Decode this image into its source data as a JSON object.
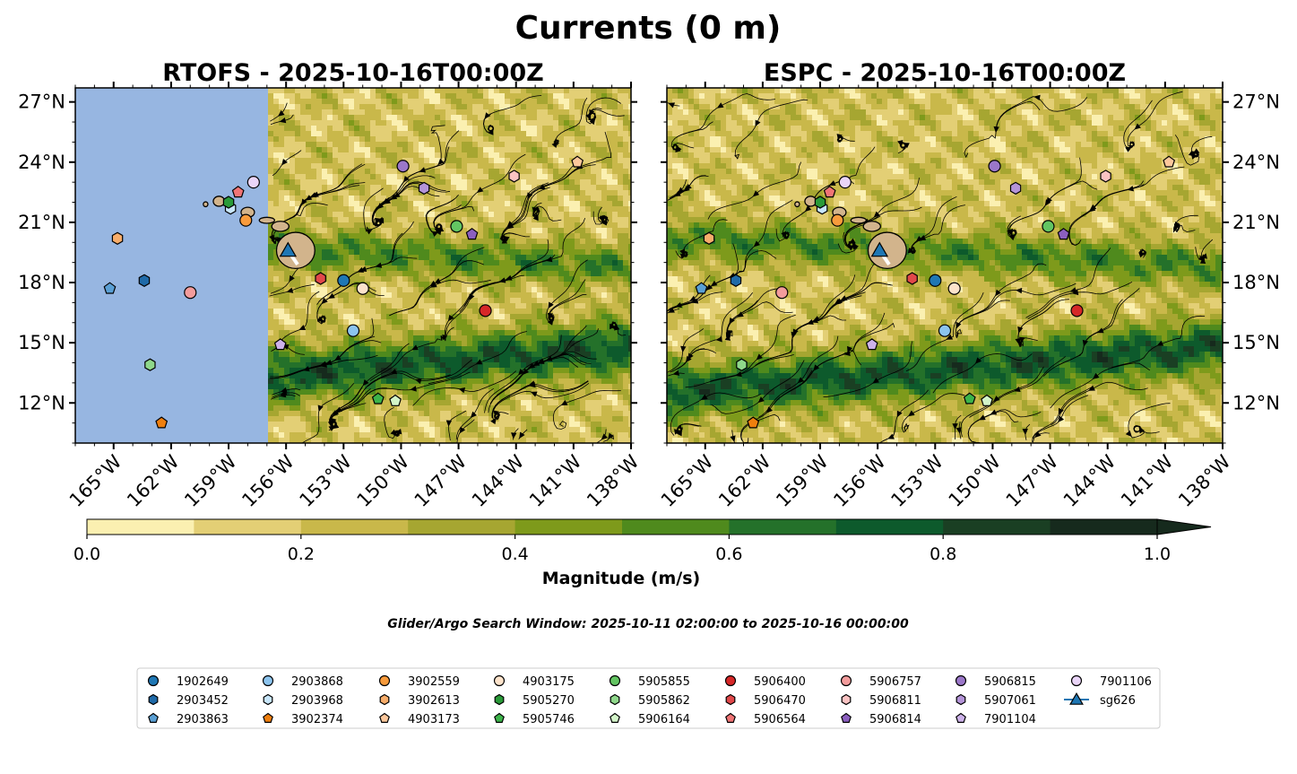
{
  "figure": {
    "title": "Currents (0 m)",
    "subtitle": "Glider/Argo Search Window: 2025-10-11 02:00:00 to 2025-10-16 00:00:00"
  },
  "panels": [
    {
      "id": "rtofs",
      "title": "RTOFS - 2025-10-16T00:00Z",
      "lat_axis_side": "left",
      "model_data_lon_start": -156.9
    },
    {
      "id": "espc",
      "title": "ESPC - 2025-10-16T00:00Z",
      "lat_axis_side": "right",
      "model_data_lon_start": -167.0
    }
  ],
  "chart_data": {
    "type": "map",
    "lon_range": [
      -167.0,
      -138.0
    ],
    "lat_range": [
      10.0,
      27.7
    ],
    "lon_ticks": [
      "165°W",
      "162°W",
      "159°W",
      "156°W",
      "153°W",
      "150°W",
      "147°W",
      "144°W",
      "141°W",
      "138°W"
    ],
    "lon_tick_values": [
      -165,
      -162,
      -159,
      -156,
      -153,
      -150,
      -147,
      -144,
      -141,
      -138
    ],
    "lat_ticks": [
      "12°N",
      "15°N",
      "18°N",
      "21°N",
      "24°N",
      "27°N"
    ],
    "lat_tick_values": [
      12,
      15,
      18,
      21,
      24,
      27
    ],
    "colorbar": {
      "label": "Magnitude (m/s)",
      "range": [
        0.0,
        1.0
      ],
      "ticks": [
        "0.0",
        "0.2",
        "0.4",
        "0.6",
        "0.8",
        "1.0"
      ],
      "tick_values": [
        0.0,
        0.2,
        0.4,
        0.6,
        0.8,
        1.0
      ],
      "colors": [
        "#fbf0b1",
        "#e3cf75",
        "#c9b84a",
        "#a6a631",
        "#7e9a1b",
        "#4f8a1d",
        "#24712a",
        "#0d5a2c",
        "#1a3f23",
        "#162a1d"
      ],
      "extend": "max"
    },
    "land_color": "#d2b48c",
    "ocean_no_data_color": "#97b6e1",
    "series": [
      {
        "name": "1902649",
        "marker": "circle",
        "color": "#1f77b4",
        "lon": -153.0,
        "lat": 18.1
      },
      {
        "name": "2903452",
        "marker": "hexagon",
        "color": "#1f6aa8",
        "lon": -163.4,
        "lat": 18.1
      },
      {
        "name": "2903863",
        "marker": "pentagon",
        "color": "#5a9fd4",
        "lon": -165.2,
        "lat": 17.7
      },
      {
        "name": "2903868",
        "marker": "circle",
        "color": "#8cc4ee",
        "lon": -152.5,
        "lat": 15.6
      },
      {
        "name": "2903968",
        "marker": "hexagon",
        "color": "#c8e6fb",
        "lon": -158.9,
        "lat": 21.7
      },
      {
        "name": "3902374",
        "marker": "pentagon",
        "color": "#ef7f0e",
        "lon": -162.5,
        "lat": 11.0
      },
      {
        "name": "3902559",
        "marker": "circle",
        "color": "#f89b3c",
        "lon": -158.1,
        "lat": 21.1
      },
      {
        "name": "3902613",
        "marker": "hexagon",
        "color": "#f7ad6b",
        "lon": -164.8,
        "lat": 20.2
      },
      {
        "name": "4903173",
        "marker": "pentagon",
        "color": "#fcc79b",
        "lon": -140.8,
        "lat": 24.0
      },
      {
        "name": "4903175",
        "marker": "circle",
        "color": "#fde3cb",
        "lon": -152.0,
        "lat": 17.7
      },
      {
        "name": "5905270",
        "marker": "hexagon",
        "color": "#2a9a38",
        "lon": -159.0,
        "lat": 22.0
      },
      {
        "name": "5905746",
        "marker": "pentagon",
        "color": "#3cb34a",
        "lon": -151.2,
        "lat": 12.2
      },
      {
        "name": "5905855",
        "marker": "circle",
        "color": "#63c562",
        "lon": -147.1,
        "lat": 20.8
      },
      {
        "name": "5905862",
        "marker": "hexagon",
        "color": "#8fd88b",
        "lon": -163.1,
        "lat": 13.9
      },
      {
        "name": "5906164",
        "marker": "pentagon",
        "color": "#d3f5c9",
        "lon": -150.3,
        "lat": 12.1
      },
      {
        "name": "5906400",
        "marker": "circle",
        "color": "#d62728",
        "lon": -145.6,
        "lat": 16.6
      },
      {
        "name": "5906470",
        "marker": "hexagon",
        "color": "#e1484a",
        "lon": -154.2,
        "lat": 18.2
      },
      {
        "name": "5906564",
        "marker": "pentagon",
        "color": "#f07475",
        "lon": -158.5,
        "lat": 22.5
      },
      {
        "name": "5906757",
        "marker": "circle",
        "color": "#f39c9c",
        "lon": -161.0,
        "lat": 17.5
      },
      {
        "name": "5906811",
        "marker": "hexagon",
        "color": "#fbc3c3",
        "lon": -144.1,
        "lat": 23.3
      },
      {
        "name": "5906814",
        "marker": "pentagon",
        "color": "#8b5fbf",
        "lon": -146.3,
        "lat": 20.4
      },
      {
        "name": "5906815",
        "marker": "circle",
        "color": "#9b77c9",
        "lon": -149.9,
        "lat": 23.8
      },
      {
        "name": "5907061",
        "marker": "hexagon",
        "color": "#b494d8",
        "lon": -148.8,
        "lat": 22.7
      },
      {
        "name": "7901104",
        "marker": "pentagon",
        "color": "#cdb2ea",
        "lon": -156.3,
        "lat": 14.9
      },
      {
        "name": "7901106",
        "marker": "circle",
        "color": "#ead5f8",
        "lon": -157.7,
        "lat": 23.0
      },
      {
        "name": "sg626",
        "marker": "triangle",
        "color": "#1f77b4",
        "line": true,
        "lon": -155.9,
        "lat": 19.6,
        "track": [
          [
            -155.9,
            19.6
          ],
          [
            -155.4,
            18.9
          ]
        ]
      }
    ],
    "legend": {
      "placement": "lower-center",
      "columns": 10
    }
  }
}
